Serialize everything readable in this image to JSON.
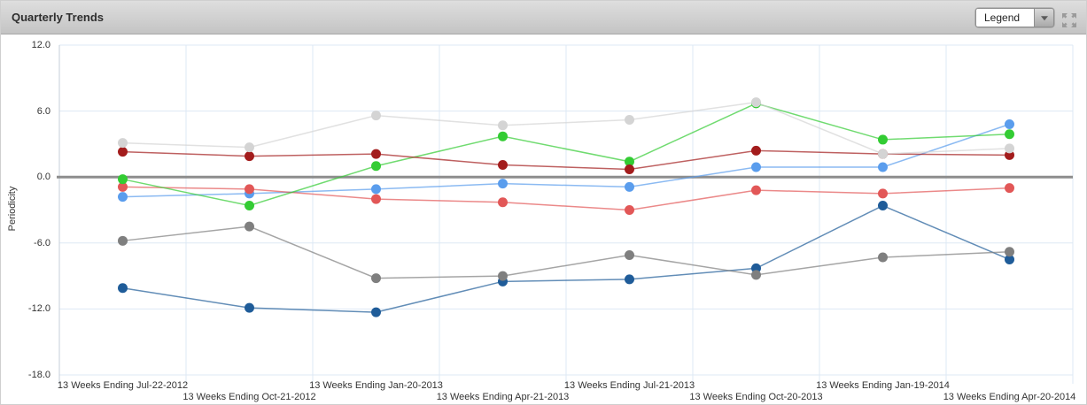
{
  "panel": {
    "title": "Quarterly Trends"
  },
  "toolbar": {
    "legend_label": "Legend",
    "legend_dropdown_icon": "caret-down",
    "maximize_icon": "expand-arrows",
    "icon_color": "#9a9a9a"
  },
  "chart_data": {
    "type": "line",
    "title": "Quarterly Trends",
    "xlabel": "",
    "ylabel": "Periodicity",
    "ylim": [
      -18,
      12
    ],
    "yticks": [
      "12.0",
      "6.0",
      "0.0",
      "-6.0",
      "-12.0",
      "-18.0"
    ],
    "grid": true,
    "grid_color": "#dde8f4",
    "zero_line_color": "#8d8d8d",
    "legend_position": "collapsed-dropdown",
    "categories": [
      "13 Weeks Ending Jul-22-2012",
      "13 Weeks Ending Oct-21-2012",
      "13 Weeks Ending Jan-20-2013",
      "13 Weeks Ending Apr-21-2013",
      "13 Weeks Ending Jul-21-2013",
      "13 Weeks Ending Oct-20-2013",
      "13 Weeks Ending Jan-19-2014",
      "13 Weeks Ending Apr-20-2014"
    ],
    "series": [
      {
        "name": "dark-blue-series",
        "color": "#1f5c99",
        "values": [
          -10.1,
          -11.9,
          -12.3,
          -9.5,
          -9.3,
          -8.3,
          -2.6,
          -7.5
        ]
      },
      {
        "name": "light-blue-series",
        "color": "#5a9ded",
        "values": [
          -1.8,
          -1.5,
          -1.1,
          -0.6,
          -0.9,
          0.9,
          0.9,
          4.8
        ]
      },
      {
        "name": "salmon-series",
        "color": "#e25757",
        "values": [
          -0.9,
          -1.1,
          -2.0,
          -2.3,
          -3.0,
          -1.2,
          -1.5,
          -1.0
        ]
      },
      {
        "name": "green-series",
        "color": "#33cc33",
        "values": [
          -0.2,
          -2.6,
          1.0,
          3.7,
          1.4,
          6.7,
          3.4,
          3.9
        ]
      },
      {
        "name": "dark-red-series",
        "color": "#a31c1c",
        "values": [
          2.3,
          1.9,
          2.1,
          1.1,
          0.7,
          2.4,
          2.1,
          2.0
        ]
      },
      {
        "name": "gray-series",
        "color": "#7f7f7f",
        "values": [
          -5.8,
          -4.5,
          -9.2,
          -9.0,
          -7.1,
          -8.9,
          -7.3,
          -6.8
        ]
      },
      {
        "name": "light-gray-series",
        "color": "#d4d4d4",
        "values": [
          3.1,
          2.7,
          5.6,
          4.7,
          5.2,
          6.8,
          2.1,
          2.6
        ]
      }
    ]
  }
}
